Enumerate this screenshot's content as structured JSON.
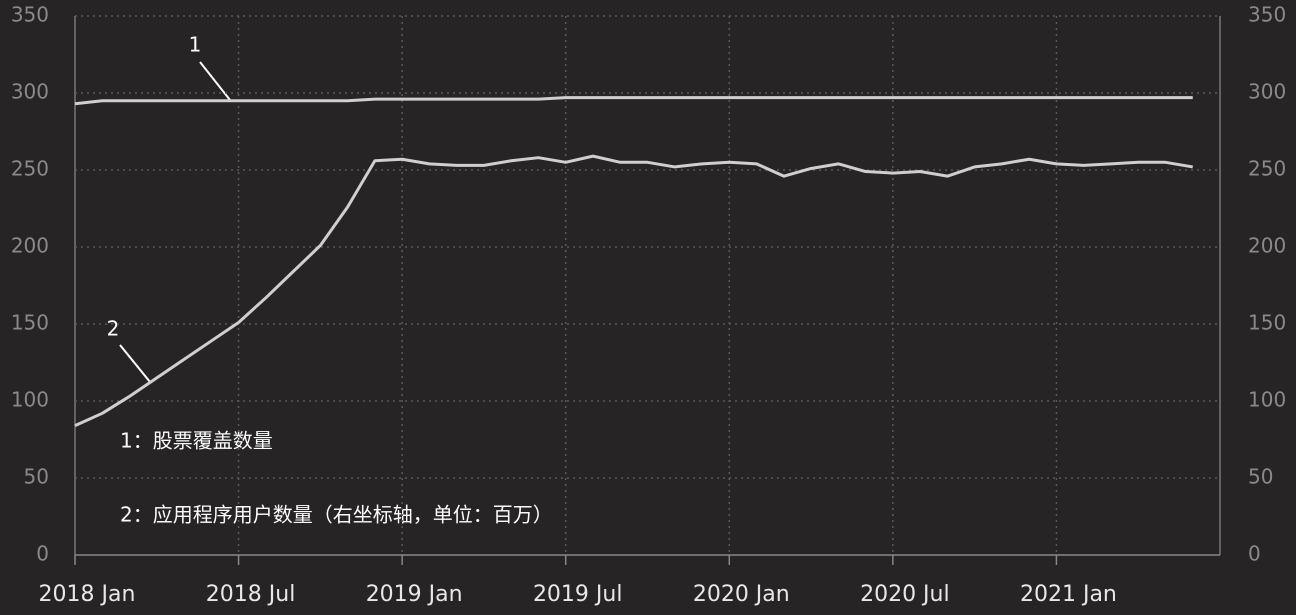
{
  "chart_data": {
    "type": "line",
    "x": [
      "2018-01",
      "2018-02",
      "2018-03",
      "2018-04",
      "2018-05",
      "2018-06",
      "2018-07",
      "2018-08",
      "2018-09",
      "2018-10",
      "2018-11",
      "2018-12",
      "2019-01",
      "2019-02",
      "2019-03",
      "2019-04",
      "2019-05",
      "2019-06",
      "2019-07",
      "2019-08",
      "2019-09",
      "2019-10",
      "2019-11",
      "2019-12",
      "2020-01",
      "2020-02",
      "2020-03",
      "2020-04",
      "2020-05",
      "2020-06",
      "2020-07",
      "2020-08",
      "2020-09",
      "2020-10",
      "2020-11",
      "2020-12",
      "2021-01",
      "2021-02",
      "2021-03",
      "2021-04",
      "2021-05",
      "2021-06"
    ],
    "xlim": [
      "2018-01",
      "2021-07"
    ],
    "xticks": [
      {
        "value": "2018-01",
        "label": "2018 Jan"
      },
      {
        "value": "2018-07",
        "label": "2018 Jul"
      },
      {
        "value": "2019-01",
        "label": "2019 Jan"
      },
      {
        "value": "2019-07",
        "label": "2019 Jul"
      },
      {
        "value": "2020-01",
        "label": "2020 Jan"
      },
      {
        "value": "2020-07",
        "label": "2020 Jul"
      },
      {
        "value": "2021-01",
        "label": "2021 Jan"
      }
    ],
    "ylim": [
      0,
      350
    ],
    "yticks": [
      0,
      50,
      100,
      150,
      200,
      250,
      300,
      350
    ],
    "y2lim": [
      0,
      350
    ],
    "y2ticks": [
      0,
      50,
      100,
      150,
      200,
      250,
      300,
      350
    ],
    "grid": true,
    "series": [
      {
        "name": "1",
        "color": "#cfcfcf",
        "values": [
          293,
          295,
          295,
          295,
          295,
          295,
          295,
          295,
          295,
          295,
          295,
          296,
          296,
          296,
          296,
          296,
          296,
          296,
          297,
          297,
          297,
          297,
          297,
          297,
          297,
          297,
          297,
          297,
          297,
          297,
          297,
          297,
          297,
          297,
          297,
          297,
          297,
          297,
          297,
          297,
          297,
          297
        ]
      },
      {
        "name": "2",
        "color": "#cfcfcf",
        "axis": "y2",
        "values": [
          84,
          92,
          103,
          115,
          127,
          139,
          151,
          167,
          184,
          201,
          226,
          256,
          257,
          254,
          253,
          253,
          256,
          258,
          255,
          259,
          255,
          255,
          252,
          254,
          255,
          254,
          246,
          251,
          254,
          249,
          248,
          249,
          246,
          252,
          254,
          257,
          254,
          253,
          254,
          255,
          255,
          252
        ]
      }
    ],
    "annotations": [
      "1：股票覆盖数量",
      "2：应用程序用户数量（右坐标轴，单位：百万）"
    ]
  }
}
